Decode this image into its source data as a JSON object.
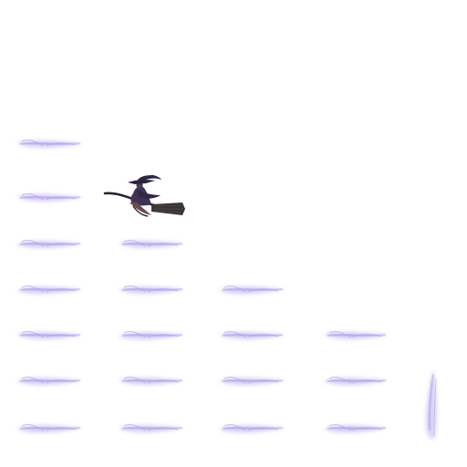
{
  "sprite_sheet": {
    "background_color": "#ffffff",
    "witch": {
      "icon": "witch-on-broomstick-icon",
      "colors": {
        "hat": "#2a2540",
        "body": "#3e3355",
        "skin_shadow": "#6b4a4a",
        "broom_stick": "#2b2430",
        "broom_bristles": "#3a3438"
      }
    },
    "magic_trails": {
      "icon": "magic-trail-icon",
      "colors": {
        "primary": "#8a72dc",
        "soft": "#c9bdf2",
        "core": "#b6a4ee"
      },
      "column_counts": [
        7,
        5,
        4,
        3
      ],
      "vertical_streak_count": 1
    }
  }
}
